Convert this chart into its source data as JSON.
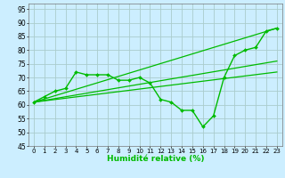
{
  "xlabel": "Humidité relative (%)",
  "bg_color": "#cceeff",
  "grid_color": "#aacccc",
  "line_color": "#00bb00",
  "xlim": [
    -0.5,
    23.5
  ],
  "ylim": [
    45,
    97
  ],
  "yticks": [
    45,
    50,
    55,
    60,
    65,
    70,
    75,
    80,
    85,
    90,
    95
  ],
  "xticks": [
    0,
    1,
    2,
    3,
    4,
    5,
    6,
    7,
    8,
    9,
    10,
    11,
    12,
    13,
    14,
    15,
    16,
    17,
    18,
    19,
    20,
    21,
    22,
    23
  ],
  "line1": {
    "x": [
      0,
      1,
      2,
      3,
      4,
      5,
      6,
      7,
      8,
      9,
      10,
      11,
      12,
      13,
      14,
      15,
      16,
      17,
      18,
      19,
      20,
      21,
      22,
      23
    ],
    "y": [
      61,
      63,
      65,
      66,
      72,
      71,
      71,
      71,
      69,
      69,
      70,
      68,
      62,
      61,
      58,
      58,
      52,
      56,
      70,
      78,
      80,
      81,
      87,
      88
    ]
  },
  "line2_x": [
    0,
    23
  ],
  "line2_y": [
    61,
    88
  ],
  "line3_x": [
    0,
    23
  ],
  "line3_y": [
    61,
    76
  ],
  "line4_x": [
    0,
    23
  ],
  "line4_y": [
    61,
    72
  ]
}
